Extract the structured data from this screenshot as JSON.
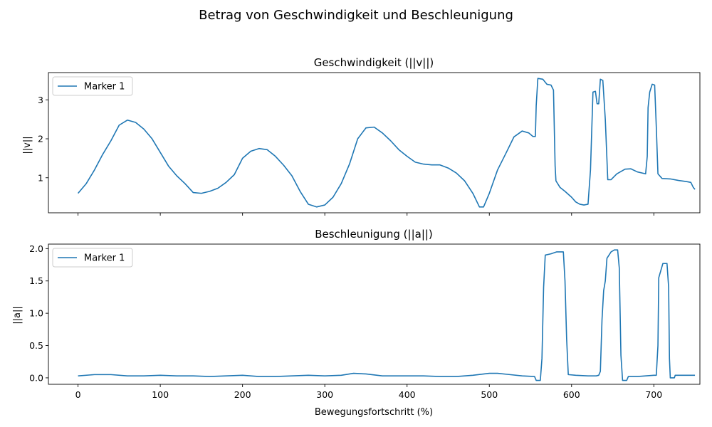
{
  "figure": {
    "suptitle": "Betrag von Geschwindigkeit und Beschleunigung",
    "xlabel": "Bewegungsfortschritt (%)",
    "line_color": "#1f77b4"
  },
  "chart_data": [
    {
      "type": "line",
      "title": "Geschwindigkeit (||v||)",
      "xlabel": "",
      "ylabel": "||v||",
      "xlim": [
        -36,
        756
      ],
      "ylim": [
        0.1,
        3.7
      ],
      "x_ticks": [
        0,
        100,
        200,
        300,
        400,
        500,
        600,
        700
      ],
      "x_tick_labels_shown": false,
      "y_ticks": [
        1,
        2,
        3
      ],
      "legend": "upper left",
      "series": [
        {
          "name": "Marker 1",
          "points": [
            [
              0,
              0.6
            ],
            [
              10,
              0.85
            ],
            [
              20,
              1.2
            ],
            [
              30,
              1.6
            ],
            [
              40,
              1.95
            ],
            [
              50,
              2.35
            ],
            [
              60,
              2.48
            ],
            [
              70,
              2.42
            ],
            [
              80,
              2.25
            ],
            [
              90,
              2.0
            ],
            [
              100,
              1.65
            ],
            [
              110,
              1.3
            ],
            [
              120,
              1.05
            ],
            [
              130,
              0.85
            ],
            [
              140,
              0.62
            ],
            [
              150,
              0.6
            ],
            [
              160,
              0.65
            ],
            [
              170,
              0.73
            ],
            [
              180,
              0.88
            ],
            [
              190,
              1.08
            ],
            [
              200,
              1.5
            ],
            [
              210,
              1.68
            ],
            [
              220,
              1.75
            ],
            [
              230,
              1.72
            ],
            [
              240,
              1.55
            ],
            [
              250,
              1.32
            ],
            [
              260,
              1.05
            ],
            [
              270,
              0.65
            ],
            [
              280,
              0.32
            ],
            [
              290,
              0.25
            ],
            [
              300,
              0.3
            ],
            [
              310,
              0.5
            ],
            [
              320,
              0.85
            ],
            [
              330,
              1.35
            ],
            [
              340,
              2.0
            ],
            [
              350,
              2.28
            ],
            [
              360,
              2.3
            ],
            [
              370,
              2.15
            ],
            [
              380,
              1.95
            ],
            [
              390,
              1.72
            ],
            [
              400,
              1.55
            ],
            [
              410,
              1.4
            ],
            [
              420,
              1.35
            ],
            [
              430,
              1.33
            ],
            [
              440,
              1.33
            ],
            [
              450,
              1.25
            ],
            [
              460,
              1.12
            ],
            [
              470,
              0.92
            ],
            [
              480,
              0.6
            ],
            [
              488,
              0.25
            ],
            [
              493,
              0.25
            ],
            [
              500,
              0.6
            ],
            [
              510,
              1.2
            ],
            [
              520,
              1.62
            ],
            [
              530,
              2.05
            ],
            [
              540,
              2.2
            ],
            [
              548,
              2.15
            ],
            [
              553,
              2.06
            ],
            [
              556,
              2.06
            ],
            [
              557,
              2.85
            ],
            [
              559,
              3.55
            ],
            [
              565,
              3.53
            ],
            [
              570,
              3.4
            ],
            [
              575,
              3.38
            ],
            [
              578,
              3.25
            ],
            [
              580,
              1.3
            ],
            [
              581,
              0.92
            ],
            [
              586,
              0.75
            ],
            [
              592,
              0.65
            ],
            [
              600,
              0.5
            ],
            [
              605,
              0.38
            ],
            [
              610,
              0.32
            ],
            [
              615,
              0.3
            ],
            [
              620,
              0.32
            ],
            [
              623,
              1.2
            ],
            [
              626,
              3.2
            ],
            [
              629,
              3.22
            ],
            [
              631,
              2.9
            ],
            [
              633,
              2.9
            ],
            [
              635,
              3.53
            ],
            [
              638,
              3.5
            ],
            [
              641,
              2.5
            ],
            [
              644,
              0.95
            ],
            [
              648,
              0.95
            ],
            [
              655,
              1.1
            ],
            [
              665,
              1.22
            ],
            [
              672,
              1.23
            ],
            [
              680,
              1.15
            ],
            [
              690,
              1.1
            ],
            [
              692,
              1.55
            ],
            [
              693,
              2.8
            ],
            [
              695,
              3.2
            ],
            [
              698,
              3.4
            ],
            [
              701,
              3.38
            ],
            [
              703,
              2.3
            ],
            [
              705,
              1.1
            ],
            [
              710,
              0.98
            ],
            [
              720,
              0.97
            ],
            [
              730,
              0.93
            ],
            [
              740,
              0.9
            ],
            [
              745,
              0.88
            ],
            [
              748,
              0.75
            ],
            [
              750,
              0.7
            ]
          ]
        }
      ]
    },
    {
      "type": "line",
      "title": "Beschleunigung (||a||)",
      "xlabel": "Bewegungsfortschritt (%)",
      "ylabel": "||a||",
      "xlim": [
        -36,
        756
      ],
      "ylim": [
        -0.1,
        2.07
      ],
      "x_ticks": [
        0,
        100,
        200,
        300,
        400,
        500,
        600,
        700
      ],
      "x_tick_labels": [
        "0",
        "100",
        "200",
        "300",
        "400",
        "500",
        "600",
        "700"
      ],
      "y_ticks": [
        0.0,
        0.5,
        1.0,
        1.5,
        2.0
      ],
      "y_tick_labels": [
        "0.0",
        "0.5",
        "1.0",
        "1.5",
        "2.0"
      ],
      "legend": "upper left",
      "series": [
        {
          "name": "Marker 1",
          "points": [
            [
              0,
              0.03
            ],
            [
              20,
              0.05
            ],
            [
              40,
              0.05
            ],
            [
              60,
              0.03
            ],
            [
              80,
              0.03
            ],
            [
              100,
              0.04
            ],
            [
              120,
              0.03
            ],
            [
              140,
              0.03
            ],
            [
              160,
              0.02
            ],
            [
              180,
              0.03
            ],
            [
              200,
              0.04
            ],
            [
              220,
              0.02
            ],
            [
              240,
              0.02
            ],
            [
              260,
              0.03
            ],
            [
              280,
              0.04
            ],
            [
              300,
              0.03
            ],
            [
              320,
              0.04
            ],
            [
              335,
              0.07
            ],
            [
              350,
              0.06
            ],
            [
              370,
              0.03
            ],
            [
              400,
              0.03
            ],
            [
              420,
              0.03
            ],
            [
              440,
              0.02
            ],
            [
              460,
              0.02
            ],
            [
              480,
              0.04
            ],
            [
              500,
              0.07
            ],
            [
              510,
              0.07
            ],
            [
              525,
              0.05
            ],
            [
              540,
              0.03
            ],
            [
              555,
              0.02
            ],
            [
              557,
              -0.04
            ],
            [
              562,
              -0.04
            ],
            [
              564,
              0.3
            ],
            [
              566,
              1.4
            ],
            [
              568,
              1.9
            ],
            [
              575,
              1.92
            ],
            [
              582,
              1.95
            ],
            [
              590,
              1.95
            ],
            [
              592,
              1.5
            ],
            [
              594,
              0.6
            ],
            [
              596,
              0.05
            ],
            [
              605,
              0.04
            ],
            [
              620,
              0.03
            ],
            [
              630,
              0.03
            ],
            [
              633,
              0.04
            ],
            [
              635,
              0.1
            ],
            [
              637,
              0.9
            ],
            [
              639,
              1.35
            ],
            [
              641,
              1.5
            ],
            [
              643,
              1.85
            ],
            [
              648,
              1.95
            ],
            [
              652,
              1.98
            ],
            [
              656,
              1.98
            ],
            [
              658,
              1.7
            ],
            [
              660,
              0.35
            ],
            [
              662,
              -0.04
            ],
            [
              667,
              -0.04
            ],
            [
              669,
              0.02
            ],
            [
              680,
              0.02
            ],
            [
              690,
              0.03
            ],
            [
              700,
              0.04
            ],
            [
              703,
              0.04
            ],
            [
              705,
              0.5
            ],
            [
              706,
              1.55
            ],
            [
              711,
              1.77
            ],
            [
              716,
              1.77
            ],
            [
              718,
              1.4
            ],
            [
              719,
              0.3
            ],
            [
              720,
              0.0
            ],
            [
              725,
              0.0
            ],
            [
              726,
              0.04
            ],
            [
              740,
              0.04
            ],
            [
              750,
              0.04
            ]
          ]
        }
      ]
    }
  ]
}
